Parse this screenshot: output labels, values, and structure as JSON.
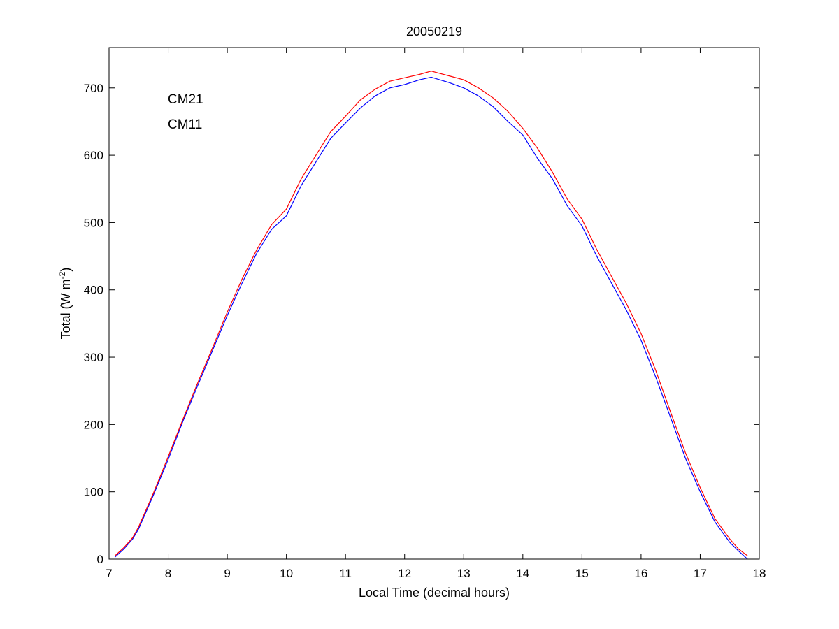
{
  "chart_data": {
    "type": "line",
    "title": "20050219",
    "xlabel": "Local Time (decimal hours)",
    "ylabel": {
      "main": "Total (W m",
      "sup": "-2",
      "close": ")"
    },
    "xlim": [
      7,
      18
    ],
    "ylim": [
      0,
      760
    ],
    "x_ticks": [
      7,
      8,
      9,
      10,
      11,
      12,
      13,
      14,
      15,
      16,
      17,
      18
    ],
    "y_ticks": [
      0,
      100,
      200,
      300,
      400,
      500,
      600,
      700
    ],
    "grid": false,
    "legend_position": "top-left",
    "series": [
      {
        "name": "CM21",
        "color": "#0000ff",
        "x": [
          7.1,
          7.25,
          7.4,
          7.5,
          7.75,
          8.0,
          8.25,
          8.5,
          8.75,
          9.0,
          9.25,
          9.5,
          9.75,
          10.0,
          10.25,
          10.5,
          10.75,
          11.0,
          11.25,
          11.5,
          11.75,
          12.0,
          12.25,
          12.45,
          12.75,
          13.0,
          13.25,
          13.5,
          13.75,
          14.0,
          14.25,
          14.5,
          14.75,
          15.0,
          15.25,
          15.5,
          15.75,
          16.0,
          16.25,
          16.5,
          16.75,
          17.0,
          17.25,
          17.5,
          17.65,
          17.8
        ],
        "y": [
          3,
          15,
          30,
          45,
          95,
          148,
          205,
          258,
          310,
          362,
          410,
          455,
          490,
          510,
          555,
          590,
          625,
          648,
          670,
          688,
          700,
          705,
          712,
          716,
          708,
          700,
          688,
          672,
          650,
          630,
          595,
          565,
          525,
          495,
          450,
          410,
          370,
          325,
          270,
          210,
          150,
          100,
          55,
          25,
          12,
          0
        ]
      },
      {
        "name": "CM11",
        "color": "#ff0000",
        "x": [
          7.1,
          7.25,
          7.4,
          7.5,
          7.75,
          8.0,
          8.25,
          8.5,
          8.75,
          9.0,
          9.25,
          9.5,
          9.75,
          10.0,
          10.25,
          10.5,
          10.75,
          11.0,
          11.25,
          11.5,
          11.75,
          12.0,
          12.25,
          12.45,
          12.75,
          13.0,
          13.25,
          13.5,
          13.75,
          14.0,
          14.25,
          14.5,
          14.75,
          15.0,
          15.25,
          15.5,
          15.75,
          16.0,
          16.25,
          16.5,
          16.75,
          17.0,
          17.25,
          17.5,
          17.65,
          17.8
        ],
        "y": [
          5,
          17,
          32,
          48,
          98,
          152,
          208,
          262,
          314,
          367,
          416,
          460,
          497,
          520,
          565,
          600,
          635,
          658,
          682,
          698,
          710,
          715,
          720,
          725,
          718,
          712,
          700,
          685,
          665,
          640,
          610,
          575,
          535,
          505,
          460,
          420,
          380,
          335,
          280,
          218,
          158,
          106,
          60,
          30,
          15,
          5
        ]
      }
    ]
  }
}
